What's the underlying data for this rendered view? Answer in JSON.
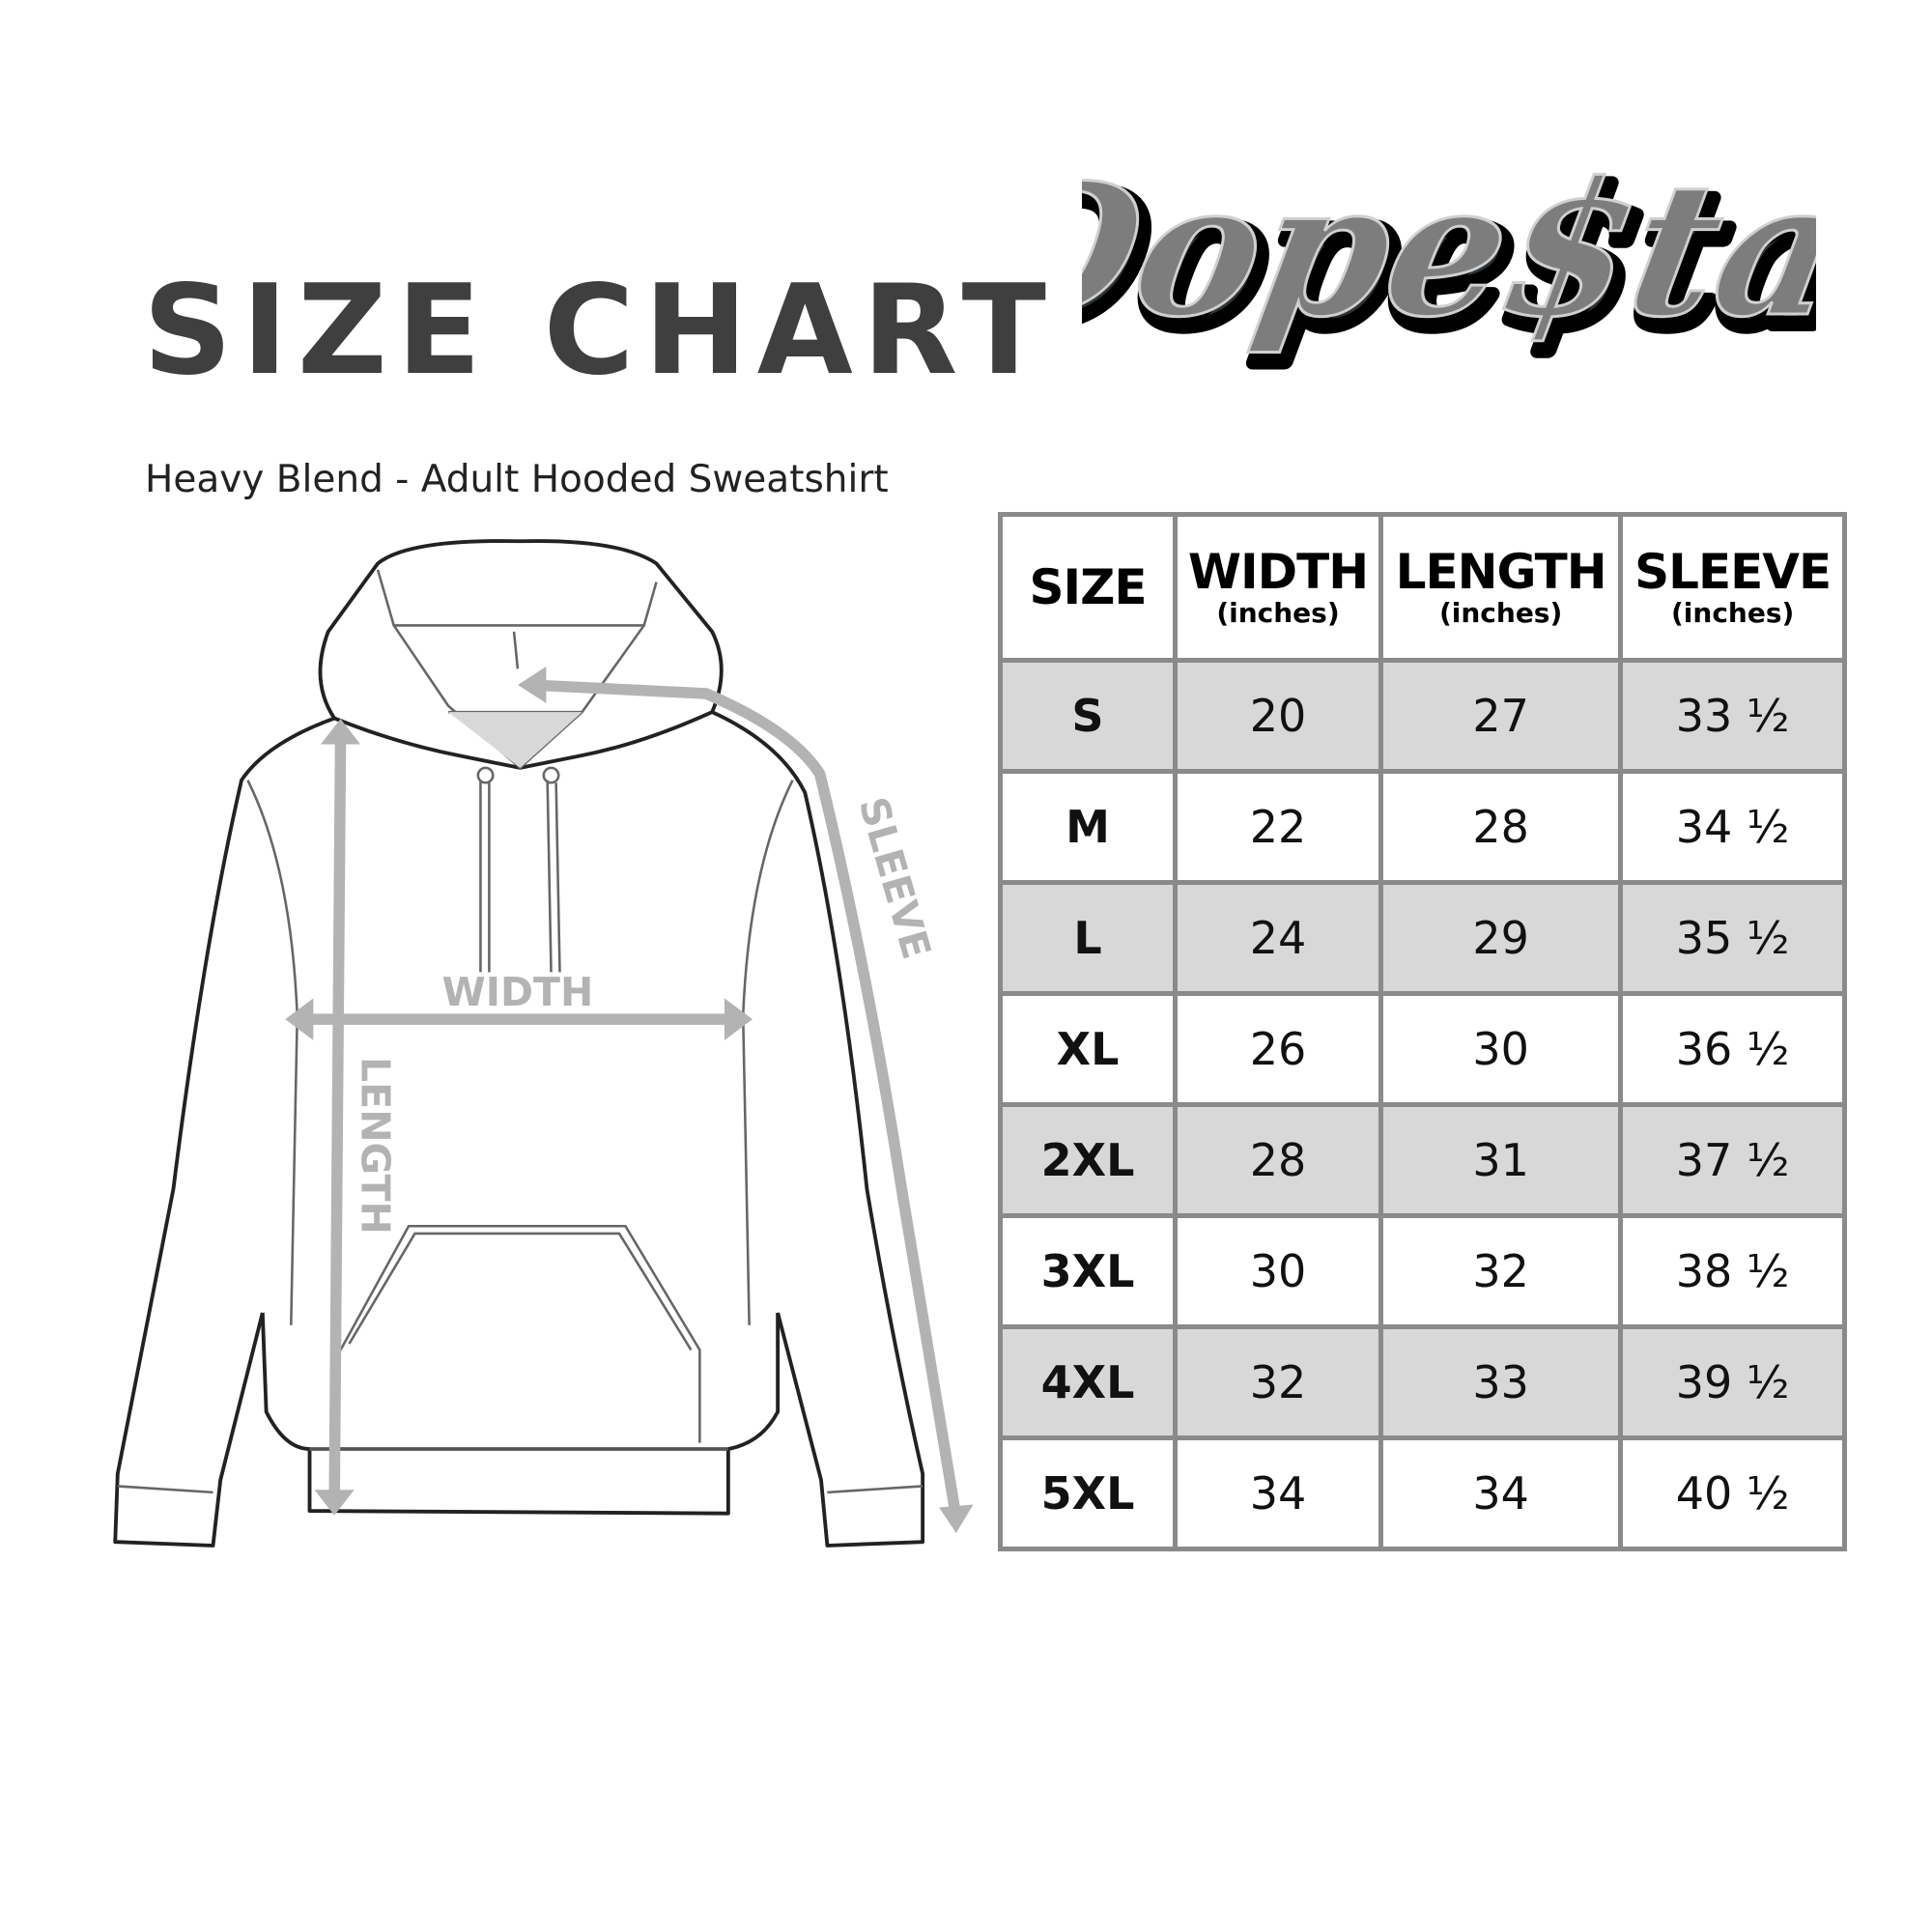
{
  "header": {
    "title": "SIZE CHART",
    "subtitle": "Heavy Blend - Adult Hooded Sweatshirt"
  },
  "logo": {
    "text": "Dope$tar"
  },
  "diagram": {
    "labels": {
      "width": "WIDTH",
      "length": "LENGTH",
      "sleeve": "SLEEVE"
    },
    "measure_color": "#b3b3b3"
  },
  "table": {
    "columns": [
      {
        "label": "SIZE",
        "unit": ""
      },
      {
        "label": "WIDTH",
        "unit": "(inches)"
      },
      {
        "label": "LENGTH",
        "unit": "(inches)"
      },
      {
        "label": "SLEEVE",
        "unit": "(inches)"
      }
    ],
    "rows": [
      [
        "S",
        "20",
        "27",
        "33 ½"
      ],
      [
        "M",
        "22",
        "28",
        "34 ½"
      ],
      [
        "L",
        "24",
        "29",
        "35 ½"
      ],
      [
        "XL",
        "26",
        "30",
        "36 ½"
      ],
      [
        "2XL",
        "28",
        "31",
        "37 ½"
      ],
      [
        "3XL",
        "30",
        "32",
        "38 ½"
      ],
      [
        "4XL",
        "32",
        "33",
        "39 ½"
      ],
      [
        "5XL",
        "34",
        "34",
        "40 ½"
      ]
    ],
    "shade_color": "#d8d8d8",
    "border_color": "#8a8a8a"
  }
}
